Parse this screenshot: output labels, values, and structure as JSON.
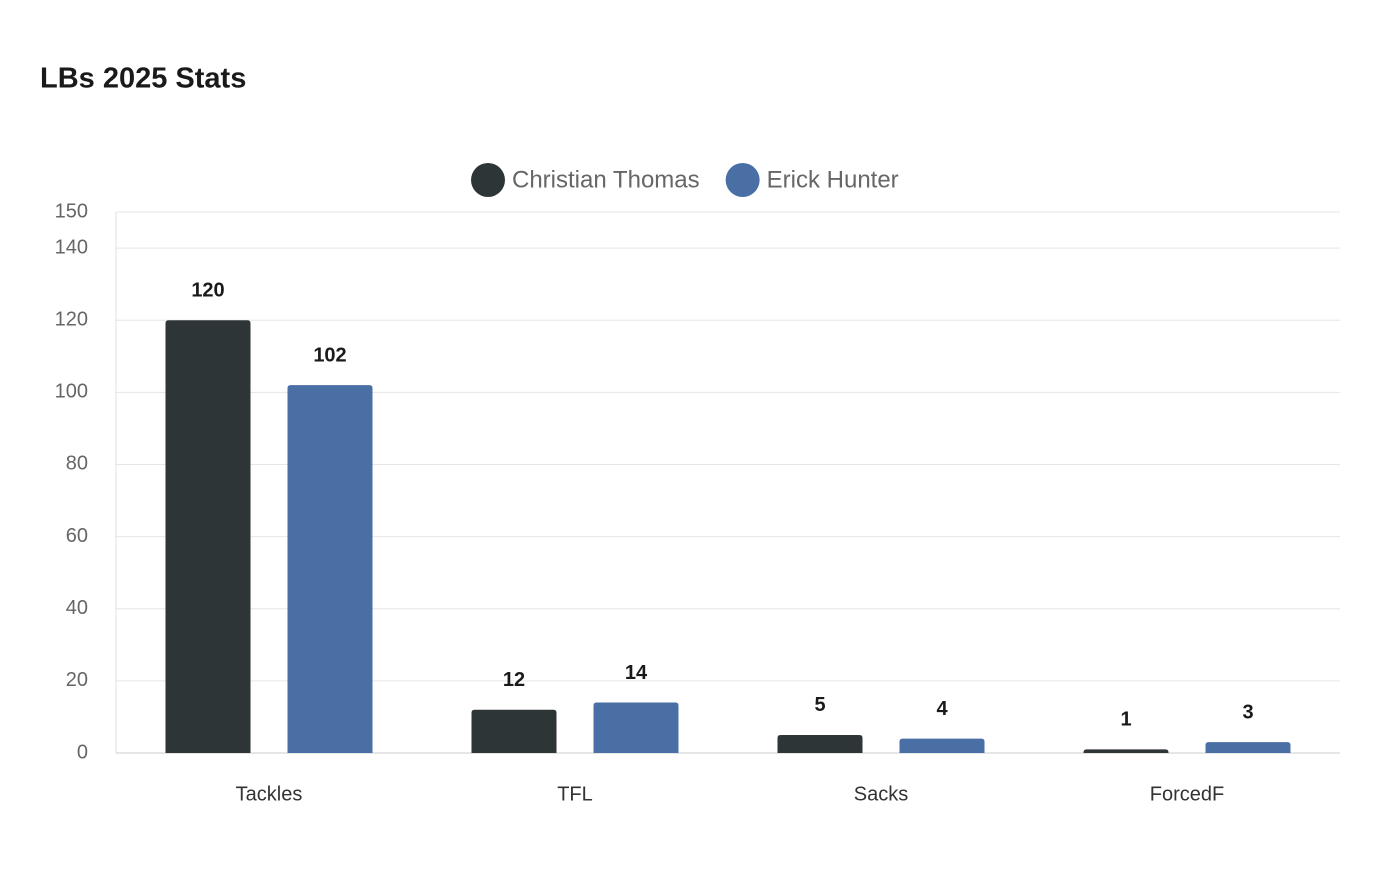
{
  "chart_data": {
    "type": "bar",
    "title": "LBs 2025 Stats",
    "categories": [
      "Tackles",
      "TFL",
      "Sacks",
      "ForcedF"
    ],
    "series": [
      {
        "name": "Christian Thomas",
        "color": "#2e3537",
        "values": [
          120,
          12,
          5,
          1
        ]
      },
      {
        "name": "Erick Hunter",
        "color": "#4a6fa5",
        "values": [
          102,
          14,
          4,
          3
        ]
      }
    ],
    "ylim": [
      0,
      150
    ],
    "yticks": [
      0,
      20,
      40,
      60,
      80,
      100,
      120,
      140,
      150
    ],
    "grid": true,
    "legend": "top"
  }
}
